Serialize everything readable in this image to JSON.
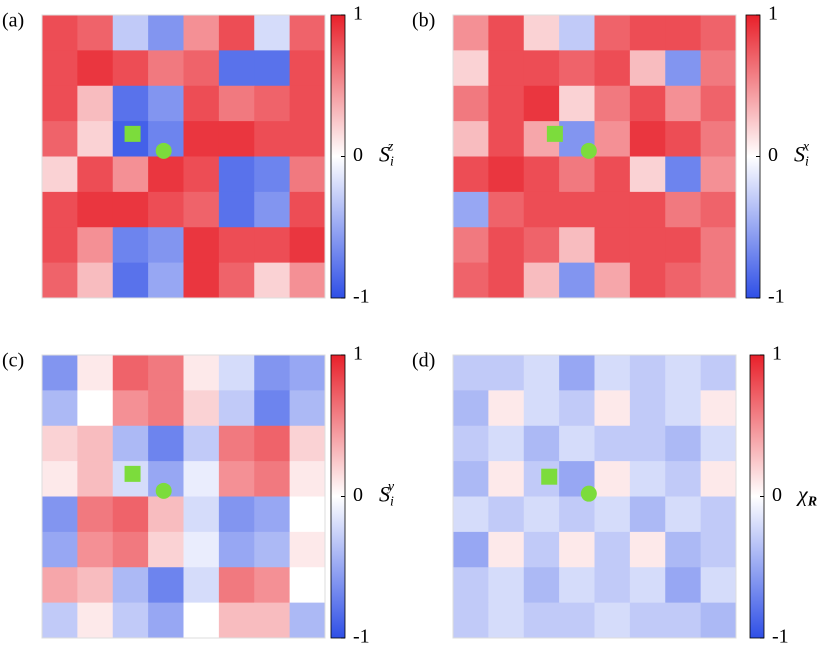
{
  "chart_data": [
    {
      "type": "heatmap",
      "panel_label": "(a)",
      "colorbar_label": {
        "symbol": "S",
        "sub": "i",
        "sup": "z"
      },
      "zlim": [
        -1,
        1
      ],
      "zticks": [
        -1,
        0,
        1
      ],
      "values": [
        [
          0.8,
          0.7,
          -0.3,
          -0.6,
          0.5,
          0.8,
          -0.2,
          0.7
        ],
        [
          0.8,
          0.9,
          0.8,
          0.6,
          0.7,
          -0.8,
          -0.8,
          0.8
        ],
        [
          0.8,
          0.3,
          -0.8,
          -0.6,
          0.8,
          0.6,
          0.7,
          0.8
        ],
        [
          0.7,
          0.2,
          -0.9,
          -0.7,
          0.9,
          0.9,
          0.8,
          0.8
        ],
        [
          0.2,
          0.8,
          0.5,
          0.9,
          0.8,
          -0.8,
          -0.7,
          0.6
        ],
        [
          0.8,
          0.9,
          0.9,
          0.8,
          0.7,
          -0.8,
          -0.6,
          0.8
        ],
        [
          0.8,
          0.5,
          -0.7,
          -0.6,
          0.9,
          0.8,
          0.8,
          0.9
        ],
        [
          0.7,
          0.3,
          -0.8,
          -0.5,
          0.9,
          0.7,
          0.2,
          0.5
        ]
      ]
    },
    {
      "type": "heatmap",
      "panel_label": "(b)",
      "colorbar_label": {
        "symbol": "S",
        "sub": "i",
        "sup": "x"
      },
      "zlim": [
        -1,
        1
      ],
      "zticks": [
        -1,
        0,
        1
      ],
      "values": [
        [
          0.5,
          0.8,
          0.2,
          -0.3,
          0.7,
          0.8,
          0.8,
          0.7
        ],
        [
          0.2,
          0.8,
          0.8,
          0.7,
          0.8,
          0.3,
          -0.6,
          0.6
        ],
        [
          0.6,
          0.8,
          0.9,
          0.2,
          0.6,
          0.8,
          0.5,
          0.7
        ],
        [
          0.3,
          0.8,
          0.4,
          -0.6,
          0.5,
          0.9,
          0.8,
          0.6
        ],
        [
          0.8,
          0.9,
          0.8,
          0.6,
          0.8,
          0.2,
          -0.7,
          0.5
        ],
        [
          -0.5,
          0.7,
          0.8,
          0.8,
          0.8,
          0.8,
          0.6,
          0.7
        ],
        [
          0.6,
          0.8,
          0.7,
          0.3,
          0.8,
          0.8,
          0.8,
          0.6
        ],
        [
          0.7,
          0.8,
          0.3,
          -0.6,
          0.4,
          0.8,
          0.7,
          0.6
        ]
      ]
    },
    {
      "type": "heatmap",
      "panel_label": "(c)",
      "colorbar_label": {
        "symbol": "S",
        "sub": "i",
        "sup": "y"
      },
      "zlim": [
        -1,
        1
      ],
      "zticks": [
        -1,
        0,
        1
      ],
      "values": [
        [
          -0.6,
          0.1,
          0.7,
          0.6,
          0.1,
          -0.2,
          -0.6,
          -0.5
        ],
        [
          -0.4,
          0.0,
          0.5,
          0.6,
          0.2,
          -0.3,
          -0.7,
          -0.4
        ],
        [
          0.2,
          0.3,
          -0.4,
          -0.7,
          -0.3,
          0.6,
          0.7,
          0.2
        ],
        [
          0.1,
          0.3,
          -0.2,
          -0.5,
          -0.1,
          0.5,
          0.6,
          0.1
        ],
        [
          -0.6,
          0.6,
          0.7,
          0.3,
          -0.2,
          -0.6,
          -0.5,
          0.0
        ],
        [
          -0.5,
          0.5,
          0.6,
          0.2,
          -0.1,
          -0.5,
          -0.4,
          0.1
        ],
        [
          0.4,
          0.3,
          -0.4,
          -0.7,
          -0.2,
          0.6,
          0.5,
          0.0
        ],
        [
          -0.3,
          0.1,
          -0.3,
          -0.5,
          0.0,
          0.3,
          0.3,
          -0.4
        ]
      ]
    },
    {
      "type": "heatmap",
      "panel_label": "(d)",
      "colorbar_label": {
        "symbol": "χ",
        "sub": "R"
      },
      "zlim": [
        -1,
        1
      ],
      "zticks": [
        -1,
        0,
        1
      ],
      "values": [
        [
          -0.3,
          -0.3,
          -0.2,
          -0.5,
          -0.2,
          -0.3,
          -0.2,
          -0.3
        ],
        [
          -0.4,
          0.1,
          -0.2,
          -0.3,
          0.1,
          -0.3,
          -0.2,
          0.1
        ],
        [
          -0.3,
          -0.2,
          -0.4,
          -0.2,
          -0.3,
          -0.3,
          -0.4,
          -0.2
        ],
        [
          -0.4,
          0.1,
          -0.3,
          -0.5,
          0.1,
          -0.2,
          -0.3,
          0.1
        ],
        [
          -0.2,
          -0.3,
          -0.2,
          -0.3,
          -0.2,
          -0.4,
          -0.2,
          -0.3
        ],
        [
          -0.5,
          0.1,
          -0.3,
          0.1,
          -0.3,
          0.1,
          -0.4,
          -0.3
        ],
        [
          -0.3,
          -0.2,
          -0.4,
          -0.2,
          -0.3,
          -0.2,
          -0.5,
          -0.2
        ],
        [
          -0.3,
          -0.2,
          -0.3,
          -0.3,
          -0.2,
          -0.3,
          -0.3,
          -0.4
        ]
      ]
    }
  ]
}
